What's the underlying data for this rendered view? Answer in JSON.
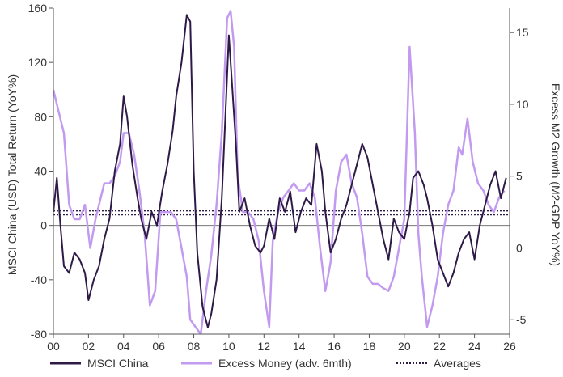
{
  "chart_data": {
    "type": "line",
    "title": "",
    "ylabel_left": "MSCI China (USD) Total Return (YoY%)",
    "ylabel_right": "Excess M2 Growth (M2-GDP YoY%)",
    "x_ticks": [
      "00",
      "02",
      "04",
      "06",
      "08",
      "10",
      "12",
      "14",
      "16",
      "18",
      "20",
      "22",
      "24",
      "26"
    ],
    "xlim": [
      2000,
      2026
    ],
    "ylim_left": [
      -80,
      160
    ],
    "y_ticks_left": [
      -80,
      -40,
      0,
      40,
      80,
      120,
      160
    ],
    "ylim_right": [
      -6,
      16.7
    ],
    "y_ticks_right": [
      -5,
      0,
      5,
      10,
      15
    ],
    "grid": false,
    "legend_position": "bottom",
    "colors": {
      "msci": "#2e1a47",
      "excess": "#c29bf0",
      "averages": "#2e1a47",
      "zero_line": "#777777",
      "axis": "#555555"
    },
    "series": [
      {
        "name": "MSCI China",
        "axis": "left",
        "x": [
          2000.0,
          2000.2,
          2000.4,
          2000.6,
          2000.9,
          2001.2,
          2001.5,
          2001.8,
          2002.0,
          2002.3,
          2002.6,
          2002.9,
          2003.2,
          2003.5,
          2003.8,
          2004.0,
          2004.2,
          2004.5,
          2004.8,
          2005.0,
          2005.3,
          2005.6,
          2005.9,
          2006.2,
          2006.5,
          2006.8,
          2007.0,
          2007.3,
          2007.6,
          2007.8,
          2008.0,
          2008.2,
          2008.5,
          2008.8,
          2009.0,
          2009.3,
          2009.6,
          2009.8,
          2010.0,
          2010.2,
          2010.4,
          2010.6,
          2010.9,
          2011.2,
          2011.5,
          2011.8,
          2012.0,
          2012.3,
          2012.6,
          2012.9,
          2013.2,
          2013.5,
          2013.8,
          2014.1,
          2014.4,
          2014.7,
          2015.0,
          2015.3,
          2015.5,
          2015.8,
          2016.1,
          2016.4,
          2016.7,
          2017.0,
          2017.3,
          2017.6,
          2017.9,
          2018.2,
          2018.5,
          2018.8,
          2019.1,
          2019.4,
          2019.7,
          2020.0,
          2020.3,
          2020.5,
          2020.8,
          2021.1,
          2021.3,
          2021.6,
          2021.9,
          2022.2,
          2022.5,
          2022.8,
          2023.1,
          2023.4,
          2023.7,
          2024.0,
          2024.3,
          2024.6,
          2024.9,
          2025.2,
          2025.5,
          2025.8
        ],
        "values": [
          10,
          35,
          0,
          -30,
          -35,
          -20,
          -25,
          -35,
          -55,
          -40,
          -30,
          -10,
          5,
          40,
          60,
          95,
          80,
          45,
          20,
          5,
          -10,
          10,
          0,
          25,
          45,
          70,
          95,
          120,
          155,
          150,
          40,
          -20,
          -60,
          -75,
          -65,
          -40,
          20,
          80,
          140,
          100,
          60,
          10,
          20,
          0,
          -15,
          -20,
          -15,
          5,
          -10,
          20,
          10,
          25,
          -5,
          10,
          20,
          15,
          60,
          40,
          10,
          -20,
          -10,
          5,
          15,
          30,
          45,
          60,
          50,
          30,
          10,
          -10,
          -25,
          5,
          -5,
          -10,
          10,
          35,
          40,
          30,
          20,
          0,
          -25,
          -35,
          -45,
          -35,
          -20,
          -10,
          -5,
          -25,
          0,
          15,
          30,
          40,
          20,
          35
        ]
      },
      {
        "name": "Excess Money (adv. 6mth)",
        "axis": "right",
        "x": [
          2000.0,
          2000.2,
          2000.6,
          2000.9,
          2001.2,
          2001.5,
          2001.8,
          2002.1,
          2002.4,
          2002.6,
          2002.9,
          2003.2,
          2003.5,
          2003.8,
          2004.0,
          2004.3,
          2004.6,
          2004.9,
          2005.2,
          2005.5,
          2005.8,
          2006.1,
          2006.4,
          2006.7,
          2007.0,
          2007.3,
          2007.6,
          2007.8,
          2008.1,
          2008.4,
          2008.7,
          2009.0,
          2009.3,
          2009.6,
          2009.9,
          2010.1,
          2010.3,
          2010.5,
          2010.8,
          2011.1,
          2011.4,
          2011.7,
          2012.0,
          2012.3,
          2012.5,
          2012.8,
          2013.1,
          2013.4,
          2013.7,
          2014.0,
          2014.3,
          2014.6,
          2014.9,
          2015.2,
          2015.5,
          2015.8,
          2016.1,
          2016.4,
          2016.7,
          2017.0,
          2017.3,
          2017.6,
          2017.9,
          2018.2,
          2018.5,
          2018.8,
          2019.1,
          2019.4,
          2019.7,
          2020.0,
          2020.3,
          2020.6,
          2020.8,
          2021.0,
          2021.3,
          2021.6,
          2021.9,
          2022.2,
          2022.5,
          2022.8,
          2023.1,
          2023.3,
          2023.6,
          2023.9,
          2024.2,
          2024.5,
          2024.8,
          2025.1,
          2025.4,
          2025.7
        ],
        "values": [
          11,
          10,
          8,
          3,
          2,
          2,
          3,
          0,
          2,
          3,
          4.5,
          4.5,
          5,
          6,
          8,
          8,
          6.5,
          4,
          1,
          -4,
          -3,
          2.5,
          2.5,
          2.5,
          2,
          0,
          -2,
          -5,
          -5.5,
          -6,
          -3,
          -0.5,
          3,
          8,
          16,
          16.5,
          14,
          5,
          2.5,
          2.5,
          2,
          0.5,
          -3,
          -5.5,
          0.5,
          2.5,
          3.5,
          4,
          4.5,
          4,
          4,
          4.5,
          3.5,
          0,
          -3,
          -1,
          4,
          6,
          6.5,
          4.5,
          3.5,
          1,
          -2,
          -2.5,
          -2.5,
          -2.8,
          -3,
          -2,
          0,
          2,
          14,
          8,
          1,
          -2,
          -5.5,
          -4,
          -2,
          1,
          3,
          4,
          7,
          6.5,
          9,
          6,
          4.5,
          4,
          3,
          2.5,
          3.5,
          4
        ]
      },
      {
        "name": "Averages",
        "axis": "left",
        "style": "dotted",
        "lines": [
          {
            "series": "MSCI China",
            "value": 8
          },
          {
            "series": "Excess Money (adv. 6mth)",
            "value": 2.6
          }
        ]
      }
    ]
  }
}
